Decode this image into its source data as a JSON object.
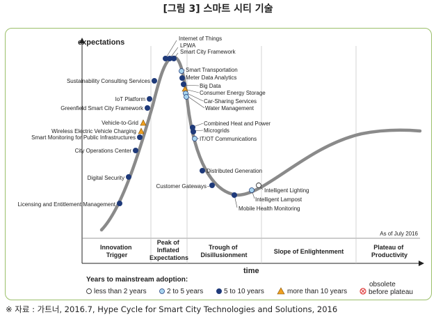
{
  "caption": "[그림 3] 스마트 시티 기술",
  "source": "※ 자료 : 가트너, 2016.7, Hype Cycle for Smart City Technologies and Solutions, 2016",
  "y_axis_title": "expectations",
  "x_axis_title": "time",
  "as_of": "As of July 2016",
  "phases": [
    [
      "Innovation",
      "Trigger"
    ],
    [
      "Peak of",
      "Inflated",
      "Expectations"
    ],
    [
      "Trough of",
      "Disillusionment"
    ],
    [
      "Slope of Enlightenment"
    ],
    [
      "Plateau of",
      "Productivity"
    ]
  ],
  "legend": {
    "title": "Years to mainstream adoption:",
    "items": [
      "less than 2 years",
      "2 to 5 years",
      "5 to 10 years",
      "more than 10 years",
      "before plateau"
    ],
    "obsolete": "obsolete"
  },
  "colors": {
    "curve": "#8a8a8a",
    "lt2": "#ffffff",
    "y2to5": "#a8d4ee",
    "y5to10": "#1f3a7a",
    "gt10": "#f0a020",
    "obsolete": "#e04040",
    "frame": "#9bbf6a"
  },
  "technologies": [
    {
      "name": "Internet of Things",
      "category": "5 to 10 years"
    },
    {
      "name": "LPWA",
      "category": "5 to 10 years"
    },
    {
      "name": "Smart City Framework",
      "category": "5 to 10 years"
    },
    {
      "name": "Smart Transportation",
      "category": "2 to 5 years"
    },
    {
      "name": "Meter Data Analytics",
      "category": "5 to 10 years"
    },
    {
      "name": "Big Data",
      "category": "5 to 10 years"
    },
    {
      "name": "Consumer Energy Storage",
      "category": "more than 10 years"
    },
    {
      "name": "Car-Sharing Services",
      "category": "2 to 5 years"
    },
    {
      "name": "Water Management",
      "category": "2 to 5 years"
    },
    {
      "name": "Combined Heat and Power",
      "category": "5 to 10 years"
    },
    {
      "name": "Microgrids",
      "category": "5 to 10 years"
    },
    {
      "name": "IT/OT Communications",
      "category": "2 to 5 years"
    },
    {
      "name": "Distributed Generation",
      "category": "5 to 10 years"
    },
    {
      "name": "Customer Gateways",
      "category": "5 to 10 years"
    },
    {
      "name": "Mobile Health Monitoring",
      "category": "5 to 10 years"
    },
    {
      "name": "Intelligent Lampost",
      "category": "2 to 5 years"
    },
    {
      "name": "Intelligent Lighting",
      "category": "less than 2 years"
    },
    {
      "name": "Sustainability Consulting Services",
      "category": "5 to 10 years"
    },
    {
      "name": "IoT Platform",
      "category": "5 to 10 years"
    },
    {
      "name": "Greenfield Smart City Framework",
      "category": "5 to 10 years"
    },
    {
      "name": "Vehicle-to-Grid",
      "category": "more than 10 years"
    },
    {
      "name": "Wireless Electric Vehicle Charging",
      "category": "more than 10 years"
    },
    {
      "name": "Smart Monitoring for Public Infrastructures",
      "category": "5 to 10 years"
    },
    {
      "name": "City Operations Center",
      "category": "5 to 10 years"
    },
    {
      "name": "Digital Security",
      "category": "5 to 10 years"
    },
    {
      "name": "Licensing and Entitlement Management",
      "category": "5 to 10 years"
    }
  ]
}
